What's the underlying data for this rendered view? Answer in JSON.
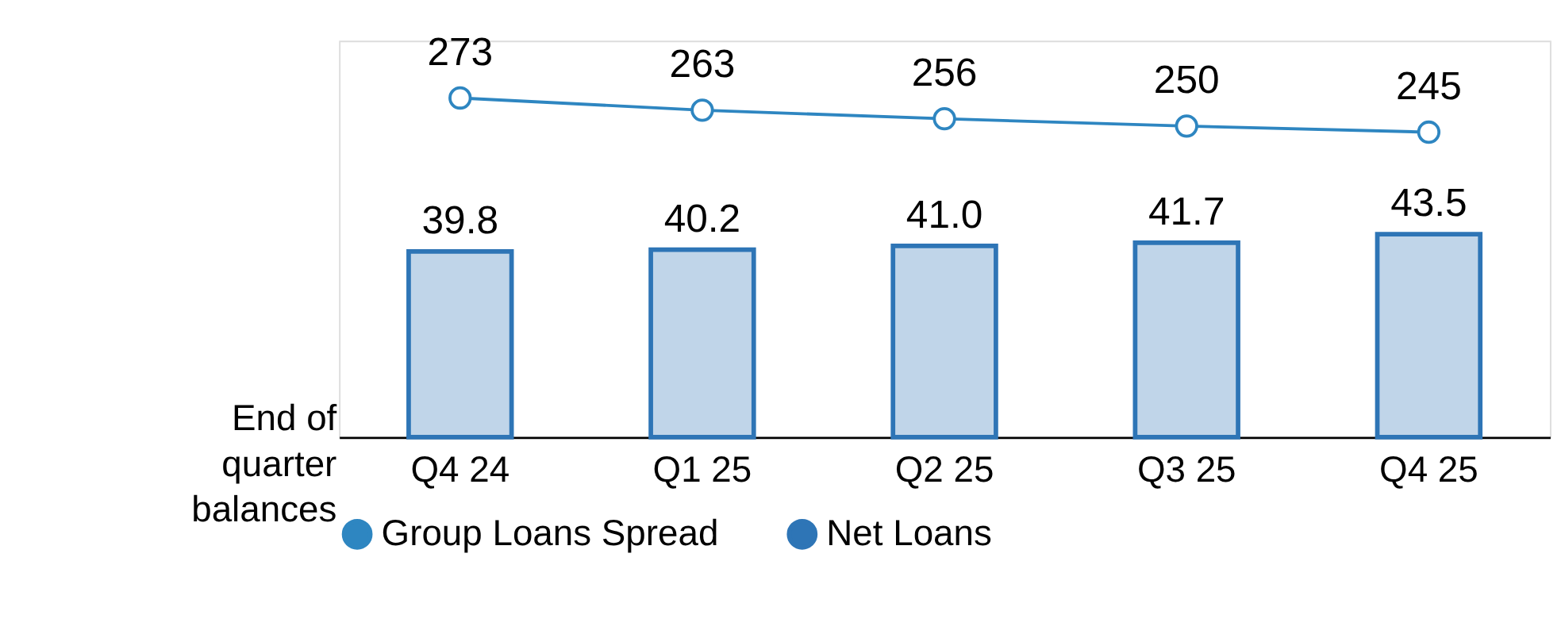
{
  "chart_data": {
    "type": "bar",
    "ylabel": "End of\nquarter\nbalances",
    "categories": [
      "Q4 24",
      "Q1 25",
      "Q2 25",
      "Q3 25",
      "Q4 25"
    ],
    "series": [
      {
        "name": "Group Loans Spread",
        "type": "line",
        "axis": "y2",
        "color": "#2e86c1",
        "marker": "circle",
        "line_style": "solid",
        "values": [
          273,
          263,
          256,
          250,
          245
        ],
        "value_labels": [
          "273",
          "263",
          "256",
          "250",
          "245"
        ]
      },
      {
        "name": "Net Loans",
        "color": "#2e75b6",
        "values": [
          39.8,
          40.2,
          41.0,
          41.7,
          43.5
        ],
        "value_labels": [
          "39.8",
          "40.2",
          "41.0",
          "41.7",
          "43.5"
        ]
      }
    ],
    "ylim": [
      0,
      85
    ],
    "y2lim": [
      -5,
      320
    ],
    "grid": false,
    "legend": "bottom",
    "tick_labels": "x"
  }
}
